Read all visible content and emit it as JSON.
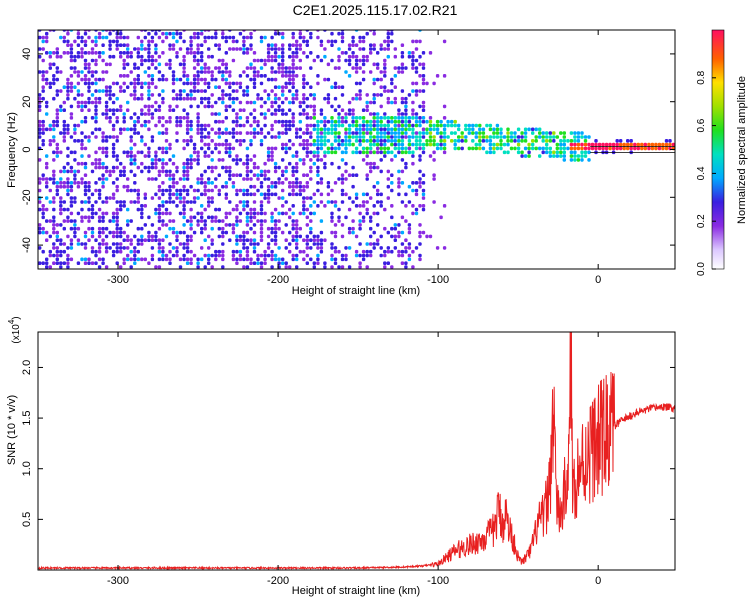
{
  "title": "C2E1.2025.115.17.02.R21",
  "chart_data": [
    {
      "type": "heatmap",
      "xlabel": "Height of straight line (km)",
      "ylabel": "Frequency (Hz)",
      "xlim": [
        -350,
        48
      ],
      "ylim": [
        -50,
        50
      ],
      "xticks": [
        -300,
        -200,
        -100,
        0
      ],
      "yticks": [
        -40,
        -20,
        0,
        20,
        40
      ],
      "colorbar": {
        "label": "Normalized spectral amplitude",
        "ticks": [
          0.0,
          0.2,
          0.4,
          0.6,
          0.8
        ],
        "range": [
          0,
          1
        ]
      },
      "features": [
        {
          "region": "x from -350 to -110",
          "level": "low (0.1-0.3), scattered across all frequencies"
        },
        {
          "region": "x from -175 to -5",
          "level": "moderate-high (0.3-0.6) band centered near 0-10 Hz, sloping toward 0 Hz"
        },
        {
          "region": "x from -20 to 48",
          "level": "high (0.8-1.0) narrow line at 0 Hz"
        }
      ]
    },
    {
      "type": "line",
      "xlabel": "Height of straight line (km)",
      "ylabel": "SNR (10 * v/v)",
      "y_scale_note": "(x10",
      "y_scale_exp": "4",
      "xlim": [
        -350,
        48
      ],
      "ylim": [
        0,
        2.35
      ],
      "xticks": [
        -300,
        -200,
        -100,
        0
      ],
      "yticks": [
        0.5,
        1.0,
        1.5,
        2.0
      ],
      "ytick_labels": [
        "0.5",
        "1.0",
        "1.5",
        "2.0"
      ],
      "color": "#e82020",
      "series": [
        {
          "x": [
            -350,
            -300,
            -250,
            -200,
            -150,
            -120,
            -110,
            -100,
            -95,
            -90,
            -85,
            -80,
            -75,
            -70,
            -65,
            -62,
            -60,
            -58,
            -55,
            -52,
            -50,
            -48,
            -45,
            -42,
            -40,
            -38,
            -35,
            -32,
            -30,
            -28,
            -26,
            -25,
            -22,
            -20,
            -18,
            -17,
            -16,
            -14,
            -12,
            -10,
            -8,
            -5,
            0,
            5,
            10,
            15,
            20,
            25,
            30,
            35,
            40,
            48
          ],
          "y": [
            0.02,
            0.02,
            0.02,
            0.02,
            0.02,
            0.03,
            0.04,
            0.06,
            0.12,
            0.18,
            0.22,
            0.25,
            0.28,
            0.32,
            0.4,
            0.6,
            0.45,
            0.55,
            0.38,
            0.25,
            0.12,
            0.08,
            0.12,
            0.2,
            0.3,
            0.45,
            0.5,
            0.65,
            0.9,
            1.65,
            0.7,
            0.55,
            0.6,
            0.95,
            1.1,
            2.3,
            0.8,
            0.9,
            1.0,
            1.05,
            1.1,
            1.18,
            1.27,
            1.35,
            1.42,
            1.48,
            1.52,
            1.56,
            1.58,
            1.6,
            1.61,
            1.6
          ]
        }
      ]
    }
  ]
}
